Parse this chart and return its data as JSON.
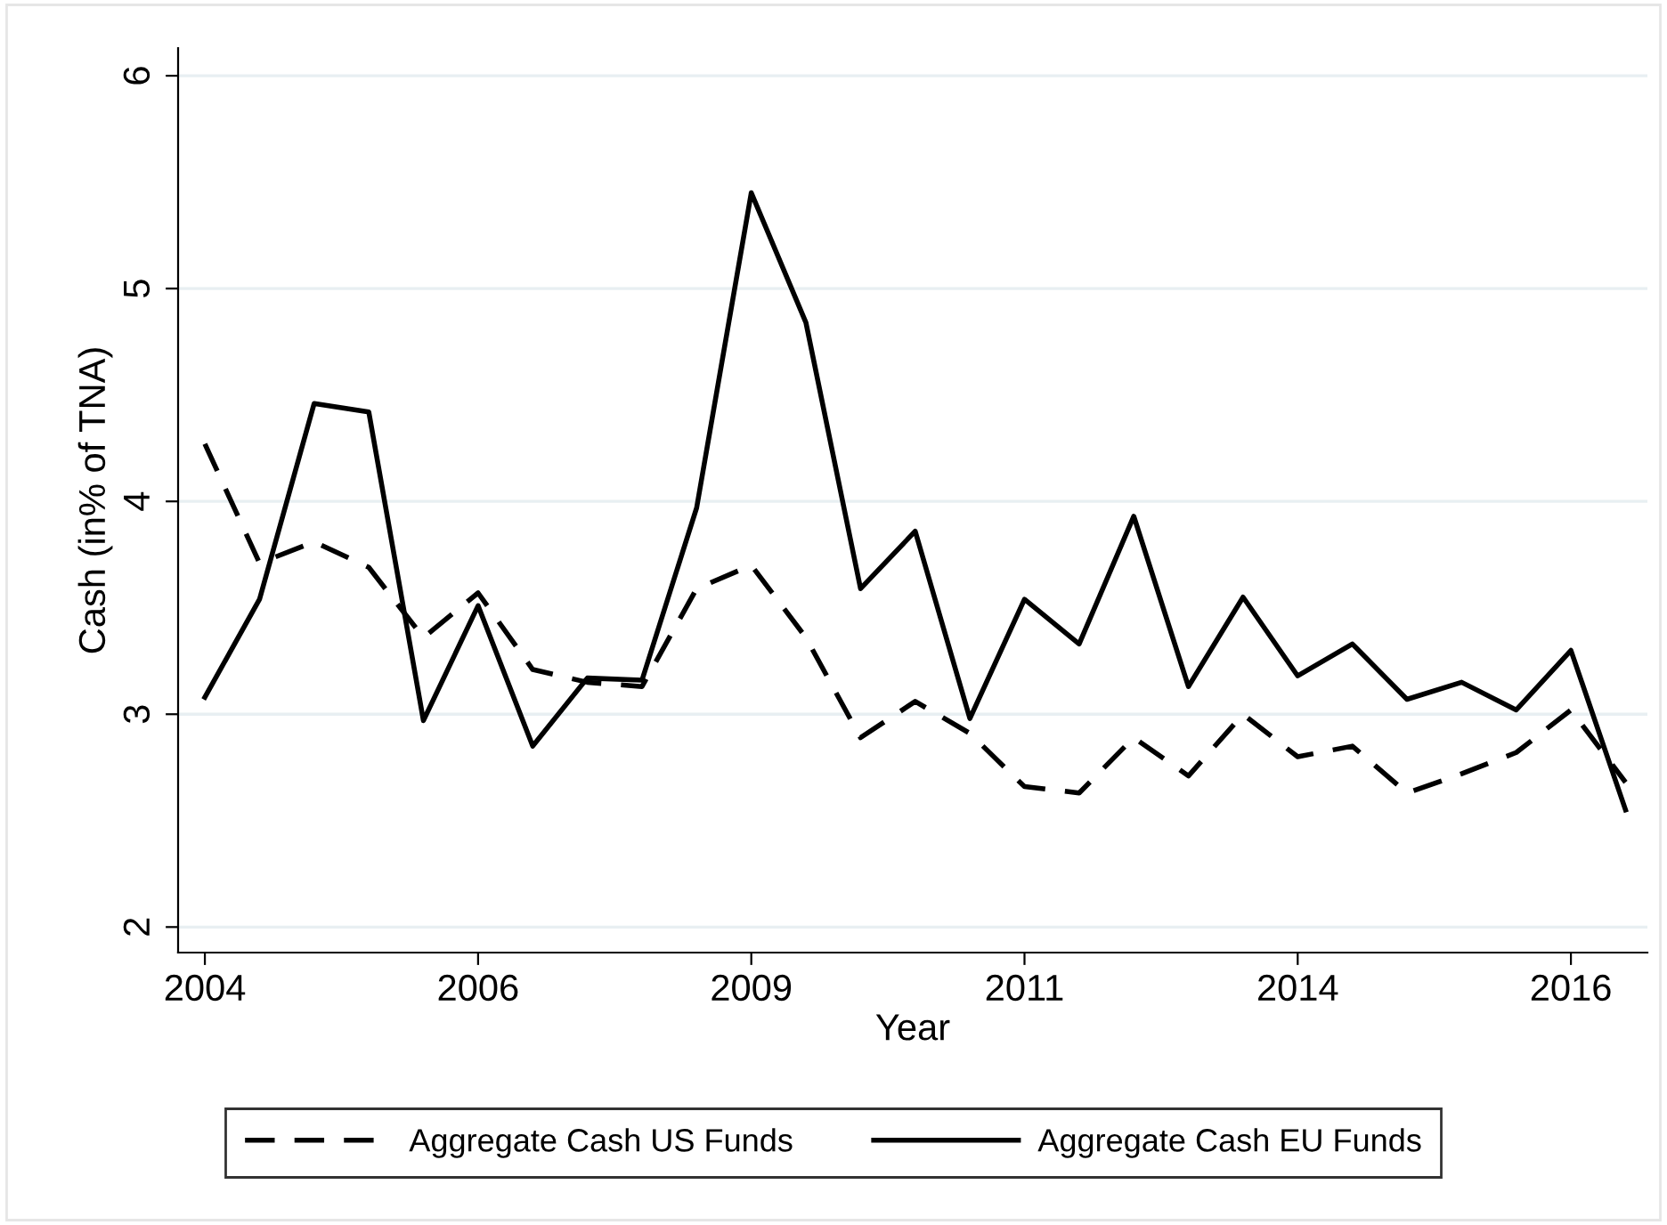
{
  "chart_data": {
    "type": "line",
    "xlabel": "Year",
    "ylabel": "Cash (in% of TNA)",
    "categories": [
      "2004",
      null,
      null,
      null,
      null,
      "2006",
      null,
      null,
      null,
      null,
      "2009",
      null,
      null,
      null,
      null,
      "2011",
      null,
      null,
      null,
      null,
      "2014",
      null,
      null,
      null,
      null,
      "2016",
      null
    ],
    "series": [
      {
        "name": "Aggregate Cash US Funds",
        "color": "#000000",
        "line_style": "dashed",
        "values": [
          4.27,
          3.71,
          3.81,
          3.69,
          3.36,
          3.57,
          3.21,
          3.15,
          3.13,
          3.59,
          3.7,
          3.36,
          2.89,
          3.06,
          2.91,
          2.66,
          2.63,
          2.89,
          2.71,
          3.0,
          2.8,
          2.85,
          2.63,
          2.72,
          2.82,
          3.02,
          2.68
        ]
      },
      {
        "name": "Aggregate Cash EU Funds",
        "color": "#000000",
        "line_style": "solid",
        "values": [
          3.08,
          3.54,
          4.46,
          4.42,
          2.97,
          3.51,
          2.85,
          3.17,
          3.16,
          3.97,
          5.45,
          4.84,
          3.59,
          3.86,
          2.98,
          3.54,
          3.33,
          3.93,
          3.13,
          3.55,
          3.18,
          3.33,
          3.07,
          3.15,
          3.02,
          3.3,
          2.55
        ]
      }
    ],
    "ylim": [
      1.88,
      6.13
    ],
    "yticks": [
      2,
      3,
      4,
      5,
      6
    ],
    "grid": "y",
    "legend": "bottom"
  }
}
